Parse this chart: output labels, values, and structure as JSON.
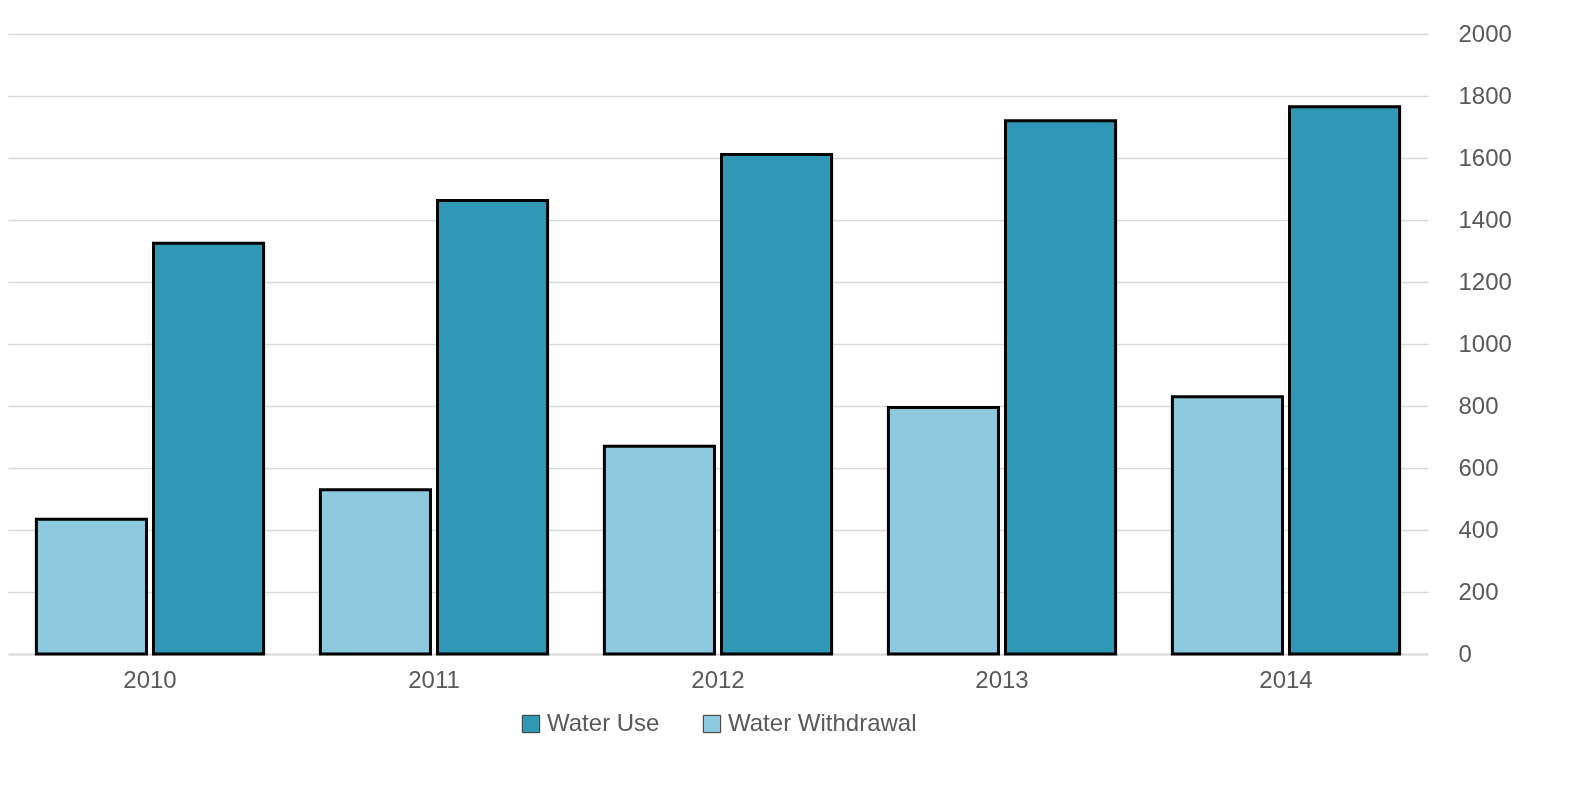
{
  "chart_data": {
    "type": "bar",
    "categories": [
      "2010",
      "2011",
      "2012",
      "2013",
      "2014"
    ],
    "series": [
      {
        "name": "Water Withdrawal",
        "color": "#8cc8de",
        "values": [
          435,
          530,
          670,
          795,
          830
        ]
      },
      {
        "name": "Water Use",
        "color": "#2e98b6",
        "values": [
          1325,
          1463,
          1611,
          1720,
          1765
        ]
      }
    ],
    "ylim": [
      0,
      2000
    ],
    "yticks": [
      0,
      200,
      400,
      600,
      800,
      1000,
      1200,
      1400,
      1600,
      1800,
      2000
    ],
    "grid": "y",
    "legend": "bottom"
  }
}
